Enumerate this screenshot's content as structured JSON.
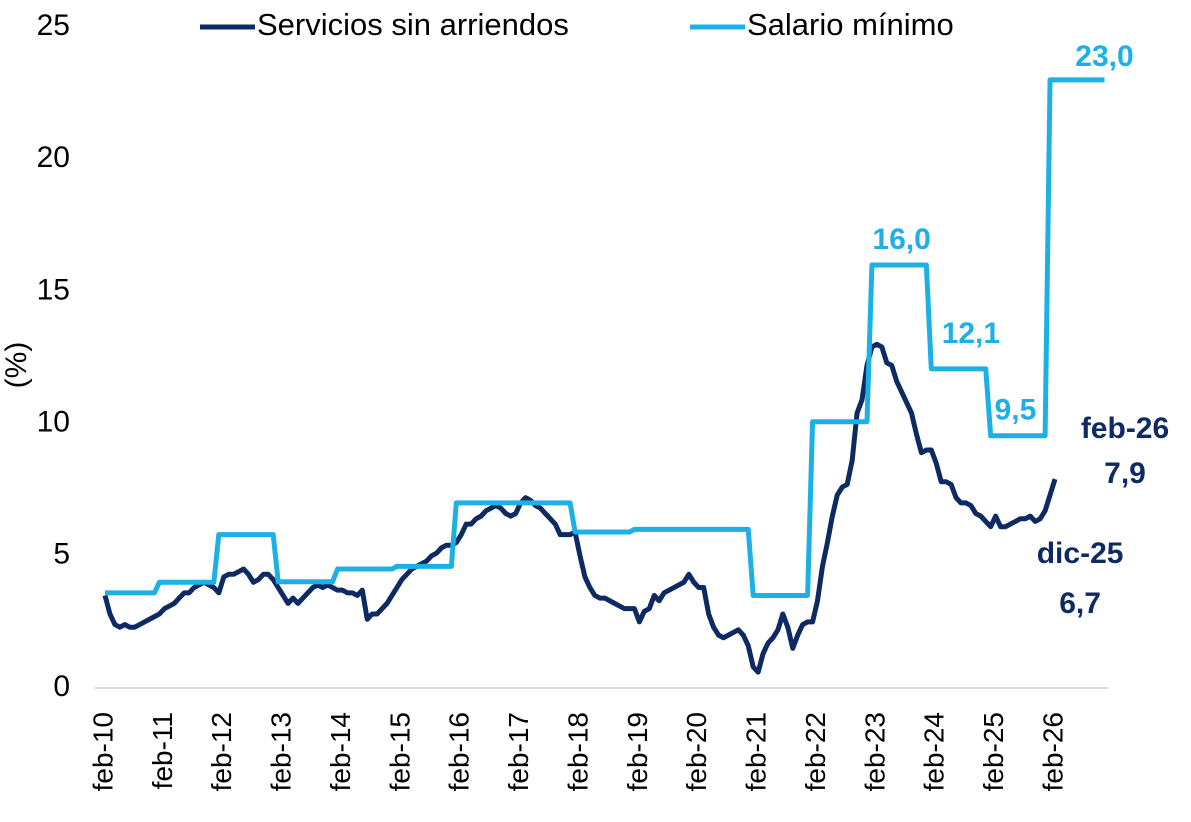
{
  "chart_data": {
    "type": "line",
    "y_label": "(%)",
    "legend": "top",
    "ylim": [
      0,
      25
    ],
    "yticks": [
      0,
      5,
      10,
      15,
      20,
      25
    ],
    "grid": false,
    "categories": [
      "feb-10",
      null,
      null,
      null,
      null,
      null,
      null,
      null,
      null,
      null,
      null,
      null,
      "feb-11",
      null,
      null,
      null,
      null,
      null,
      null,
      null,
      null,
      null,
      null,
      null,
      "feb-12",
      null,
      null,
      null,
      null,
      null,
      null,
      null,
      null,
      null,
      null,
      null,
      "feb-13",
      null,
      null,
      null,
      null,
      null,
      null,
      null,
      null,
      null,
      null,
      null,
      "feb-14",
      null,
      null,
      null,
      null,
      null,
      null,
      null,
      null,
      null,
      null,
      null,
      "feb-15",
      null,
      null,
      null,
      null,
      null,
      null,
      null,
      null,
      null,
      null,
      null,
      "feb-16",
      null,
      null,
      null,
      null,
      null,
      null,
      null,
      null,
      null,
      null,
      null,
      "feb-17",
      null,
      null,
      null,
      null,
      null,
      null,
      null,
      null,
      null,
      null,
      null,
      "feb-18",
      null,
      null,
      null,
      null,
      null,
      null,
      null,
      null,
      null,
      null,
      null,
      "feb-19",
      null,
      null,
      null,
      null,
      null,
      null,
      null,
      null,
      null,
      null,
      null,
      "feb-20",
      null,
      null,
      null,
      null,
      null,
      null,
      null,
      null,
      null,
      null,
      null,
      "feb-21",
      null,
      null,
      null,
      null,
      null,
      null,
      null,
      null,
      null,
      null,
      null,
      "feb-22",
      null,
      null,
      null,
      null,
      null,
      null,
      null,
      null,
      null,
      null,
      null,
      "feb-23",
      null,
      null,
      null,
      null,
      null,
      null,
      null,
      null,
      null,
      null,
      null,
      "feb-24",
      null,
      null,
      null,
      null,
      null,
      null,
      null,
      null,
      null,
      null,
      null,
      "feb-25",
      null,
      null,
      null,
      null,
      null,
      null,
      null,
      null,
      null,
      null,
      null,
      "feb-26",
      null,
      null,
      null,
      null,
      null,
      null,
      null,
      null,
      null,
      null
    ],
    "annotations": [
      "dic-25",
      "feb-26"
    ],
    "series": [
      {
        "name": "Servicios sin arriendos",
        "color": "#0e2a63",
        "values": [
          3.5,
          2.8,
          2.4,
          2.3,
          2.4,
          2.3,
          2.3,
          2.4,
          2.5,
          2.6,
          2.7,
          2.8,
          3.0,
          3.1,
          3.2,
          3.4,
          3.6,
          3.6,
          3.8,
          3.9,
          4.0,
          3.9,
          3.8,
          3.6,
          4.2,
          4.3,
          4.3,
          4.4,
          4.5,
          4.3,
          4.0,
          4.1,
          4.3,
          4.3,
          4.1,
          3.8,
          3.5,
          3.2,
          3.4,
          3.2,
          3.4,
          3.6,
          3.8,
          3.9,
          3.8,
          3.9,
          3.8,
          3.7,
          3.7,
          3.6,
          3.6,
          3.5,
          3.7,
          2.6,
          2.8,
          2.8,
          3.0,
          3.2,
          3.5,
          3.8,
          4.1,
          4.3,
          4.5,
          4.6,
          4.7,
          4.8,
          5.0,
          5.1,
          5.3,
          5.4,
          5.4,
          5.5,
          5.8,
          6.2,
          6.2,
          6.4,
          6.5,
          6.7,
          6.8,
          6.9,
          6.8,
          6.6,
          6.5,
          6.6,
          7.0,
          7.2,
          7.1,
          6.9,
          6.8,
          6.6,
          6.4,
          6.2,
          5.8,
          5.8,
          5.8,
          5.9,
          5.0,
          4.2,
          3.8,
          3.5,
          3.4,
          3.4,
          3.3,
          3.2,
          3.1,
          3.0,
          3.0,
          3.0,
          2.5,
          2.9,
          3.0,
          3.5,
          3.3,
          3.6,
          3.7,
          3.8,
          3.9,
          4.0,
          4.3,
          4.0,
          3.8,
          3.8,
          2.8,
          2.3,
          2.0,
          1.9,
          2.0,
          2.1,
          2.2,
          2.0,
          1.6,
          0.8,
          0.6,
          1.3,
          1.7,
          1.9,
          2.2,
          2.8,
          2.3,
          1.5,
          2.0,
          2.4,
          2.5,
          2.5,
          3.3,
          4.6,
          5.5,
          6.5,
          7.3,
          7.6,
          7.7,
          8.6,
          10.4,
          10.9,
          12.2,
          12.9,
          13.0,
          12.9,
          12.3,
          12.2,
          11.6,
          11.2,
          10.8,
          10.4,
          9.6,
          8.9,
          9.0,
          9.0,
          8.5,
          7.8,
          7.8,
          7.7,
          7.2,
          7.0,
          7.0,
          6.9,
          6.6,
          6.5,
          6.3,
          6.1,
          6.5,
          6.1,
          6.1,
          6.2,
          6.3,
          6.4,
          6.4,
          6.5,
          6.3,
          6.4,
          6.7,
          7.3,
          7.9,
          null,
          null,
          null,
          null,
          null,
          null,
          null,
          null,
          null,
          null
        ],
        "value_labels": [
          null,
          null,
          null,
          null,
          null,
          null,
          null,
          null,
          null,
          null,
          null,
          null,
          null,
          null,
          null,
          null,
          null,
          null,
          null,
          null,
          null,
          null,
          null,
          null,
          null,
          null,
          null,
          null,
          null,
          null,
          null,
          null,
          null,
          null,
          null,
          null,
          null,
          null,
          null,
          null,
          null,
          null,
          null,
          null,
          null,
          null,
          null,
          null,
          null,
          null,
          null,
          null,
          null,
          null,
          null,
          null,
          null,
          null,
          null,
          null,
          null,
          null,
          null,
          null,
          null,
          null,
          null,
          null,
          null,
          null,
          null,
          null,
          null,
          null,
          null,
          null,
          null,
          null,
          null,
          null,
          null,
          null,
          null,
          null,
          null,
          null,
          null,
          null,
          null,
          null,
          null,
          null,
          null,
          null,
          null,
          null,
          null,
          null,
          null,
          null,
          null,
          null,
          null,
          null,
          null,
          null,
          null,
          null,
          null,
          null,
          null,
          null,
          null,
          null,
          null,
          null,
          null,
          null,
          null,
          null,
          null,
          null,
          null,
          null,
          null,
          null,
          null,
          null,
          null,
          null,
          null,
          null,
          null,
          null,
          null,
          null,
          null,
          null,
          null,
          null,
          null,
          null,
          null,
          null,
          null,
          null,
          null,
          null,
          null,
          null,
          null,
          null,
          null,
          null,
          null,
          null,
          null,
          null,
          null,
          null,
          null,
          null,
          null,
          null,
          null,
          null,
          null,
          null,
          null,
          null,
          null,
          null,
          null,
          null,
          null,
          null,
          null,
          null,
          null,
          null,
          null,
          null,
          null,
          null,
          null,
          null,
          null,
          null,
          null,
          null,
          "6,7",
          null,
          "7,9",
          null,
          null,
          null,
          null,
          null,
          null,
          null,
          null,
          null,
          null
        ]
      },
      {
        "name": "Salario mínimo",
        "color": "#1cb0e6",
        "values": [
          3.6,
          3.6,
          3.6,
          3.6,
          3.6,
          3.6,
          3.6,
          3.6,
          3.6,
          3.6,
          3.6,
          4.0,
          4.0,
          4.0,
          4.0,
          4.0,
          4.0,
          4.0,
          4.0,
          4.0,
          4.0,
          4.0,
          4.0,
          5.8,
          5.8,
          5.8,
          5.8,
          5.8,
          5.8,
          5.8,
          5.8,
          5.8,
          5.8,
          5.8,
          5.8,
          4.02,
          4.02,
          4.02,
          4.02,
          4.02,
          4.02,
          4.02,
          4.02,
          4.02,
          4.02,
          4.02,
          4.02,
          4.5,
          4.5,
          4.5,
          4.5,
          4.5,
          4.5,
          4.5,
          4.5,
          4.5,
          4.5,
          4.5,
          4.5,
          4.6,
          4.6,
          4.6,
          4.6,
          4.6,
          4.6,
          4.6,
          4.6,
          4.6,
          4.6,
          4.6,
          4.6,
          7.0,
          7.0,
          7.0,
          7.0,
          7.0,
          7.0,
          7.0,
          7.0,
          7.0,
          7.0,
          7.0,
          7.0,
          7.0,
          7.0,
          7.0,
          7.0,
          7.0,
          7.0,
          7.0,
          7.0,
          7.0,
          7.0,
          7.0,
          7.0,
          5.9,
          5.9,
          5.9,
          5.9,
          5.9,
          5.9,
          5.9,
          5.9,
          5.9,
          5.9,
          5.9,
          5.9,
          6.0,
          6.0,
          6.0,
          6.0,
          6.0,
          6.0,
          6.0,
          6.0,
          6.0,
          6.0,
          6.0,
          6.0,
          6.0,
          6.0,
          6.0,
          6.0,
          6.0,
          6.0,
          6.0,
          6.0,
          6.0,
          6.0,
          6.0,
          6.0,
          3.5,
          3.5,
          3.5,
          3.5,
          3.5,
          3.5,
          3.5,
          3.5,
          3.5,
          3.5,
          3.5,
          3.5,
          10.07,
          10.07,
          10.07,
          10.07,
          10.07,
          10.07,
          10.07,
          10.07,
          10.07,
          10.07,
          10.07,
          10.07,
          16.0,
          16.0,
          16.0,
          16.0,
          16.0,
          16.0,
          16.0,
          16.0,
          16.0,
          16.0,
          16.0,
          16.0,
          12.07,
          12.07,
          12.07,
          12.07,
          12.07,
          12.07,
          12.07,
          12.07,
          12.07,
          12.07,
          12.07,
          12.07,
          9.54,
          9.54,
          9.54,
          9.54,
          9.54,
          9.54,
          9.54,
          9.54,
          9.54,
          9.54,
          9.54,
          9.54,
          23.0,
          23.0,
          23.0,
          23.0,
          23.0,
          23.0,
          23.0,
          23.0,
          23.0,
          23.0,
          23.0,
          23.0
        ],
        "value_labels": [
          null,
          null,
          null,
          null,
          null,
          null,
          null,
          null,
          null,
          null,
          null,
          null,
          null,
          null,
          null,
          null,
          null,
          null,
          null,
          null,
          null,
          null,
          null,
          null,
          null,
          null,
          null,
          null,
          null,
          null,
          null,
          null,
          null,
          null,
          null,
          null,
          null,
          null,
          null,
          null,
          null,
          null,
          null,
          null,
          null,
          null,
          null,
          null,
          null,
          null,
          null,
          null,
          null,
          null,
          null,
          null,
          null,
          null,
          null,
          null,
          null,
          null,
          null,
          null,
          null,
          null,
          null,
          null,
          null,
          null,
          null,
          null,
          null,
          null,
          null,
          null,
          null,
          null,
          null,
          null,
          null,
          null,
          null,
          null,
          null,
          null,
          null,
          null,
          null,
          null,
          null,
          null,
          null,
          null,
          null,
          null,
          null,
          null,
          null,
          null,
          null,
          null,
          null,
          null,
          null,
          null,
          null,
          null,
          null,
          null,
          null,
          null,
          null,
          null,
          null,
          null,
          null,
          null,
          null,
          null,
          null,
          null,
          null,
          null,
          null,
          null,
          null,
          null,
          null,
          null,
          null,
          null,
          null,
          null,
          null,
          null,
          null,
          null,
          null,
          null,
          null,
          null,
          null,
          null,
          null,
          null,
          null,
          null,
          null,
          null,
          null,
          null,
          null,
          null,
          null,
          null,
          null,
          null,
          null,
          null,
          null,
          "16,0",
          null,
          null,
          null,
          null,
          null,
          null,
          null,
          null,
          null,
          null,
          null,
          null,
          null,
          "12,1",
          null,
          null,
          null,
          null,
          null,
          null,
          null,
          null,
          "9,5",
          null,
          null,
          null,
          null,
          null,
          null,
          null,
          null,
          null,
          null,
          null,
          null,
          null,
          null,
          null,
          null,
          null,
          "23,0"
        ]
      }
    ]
  }
}
